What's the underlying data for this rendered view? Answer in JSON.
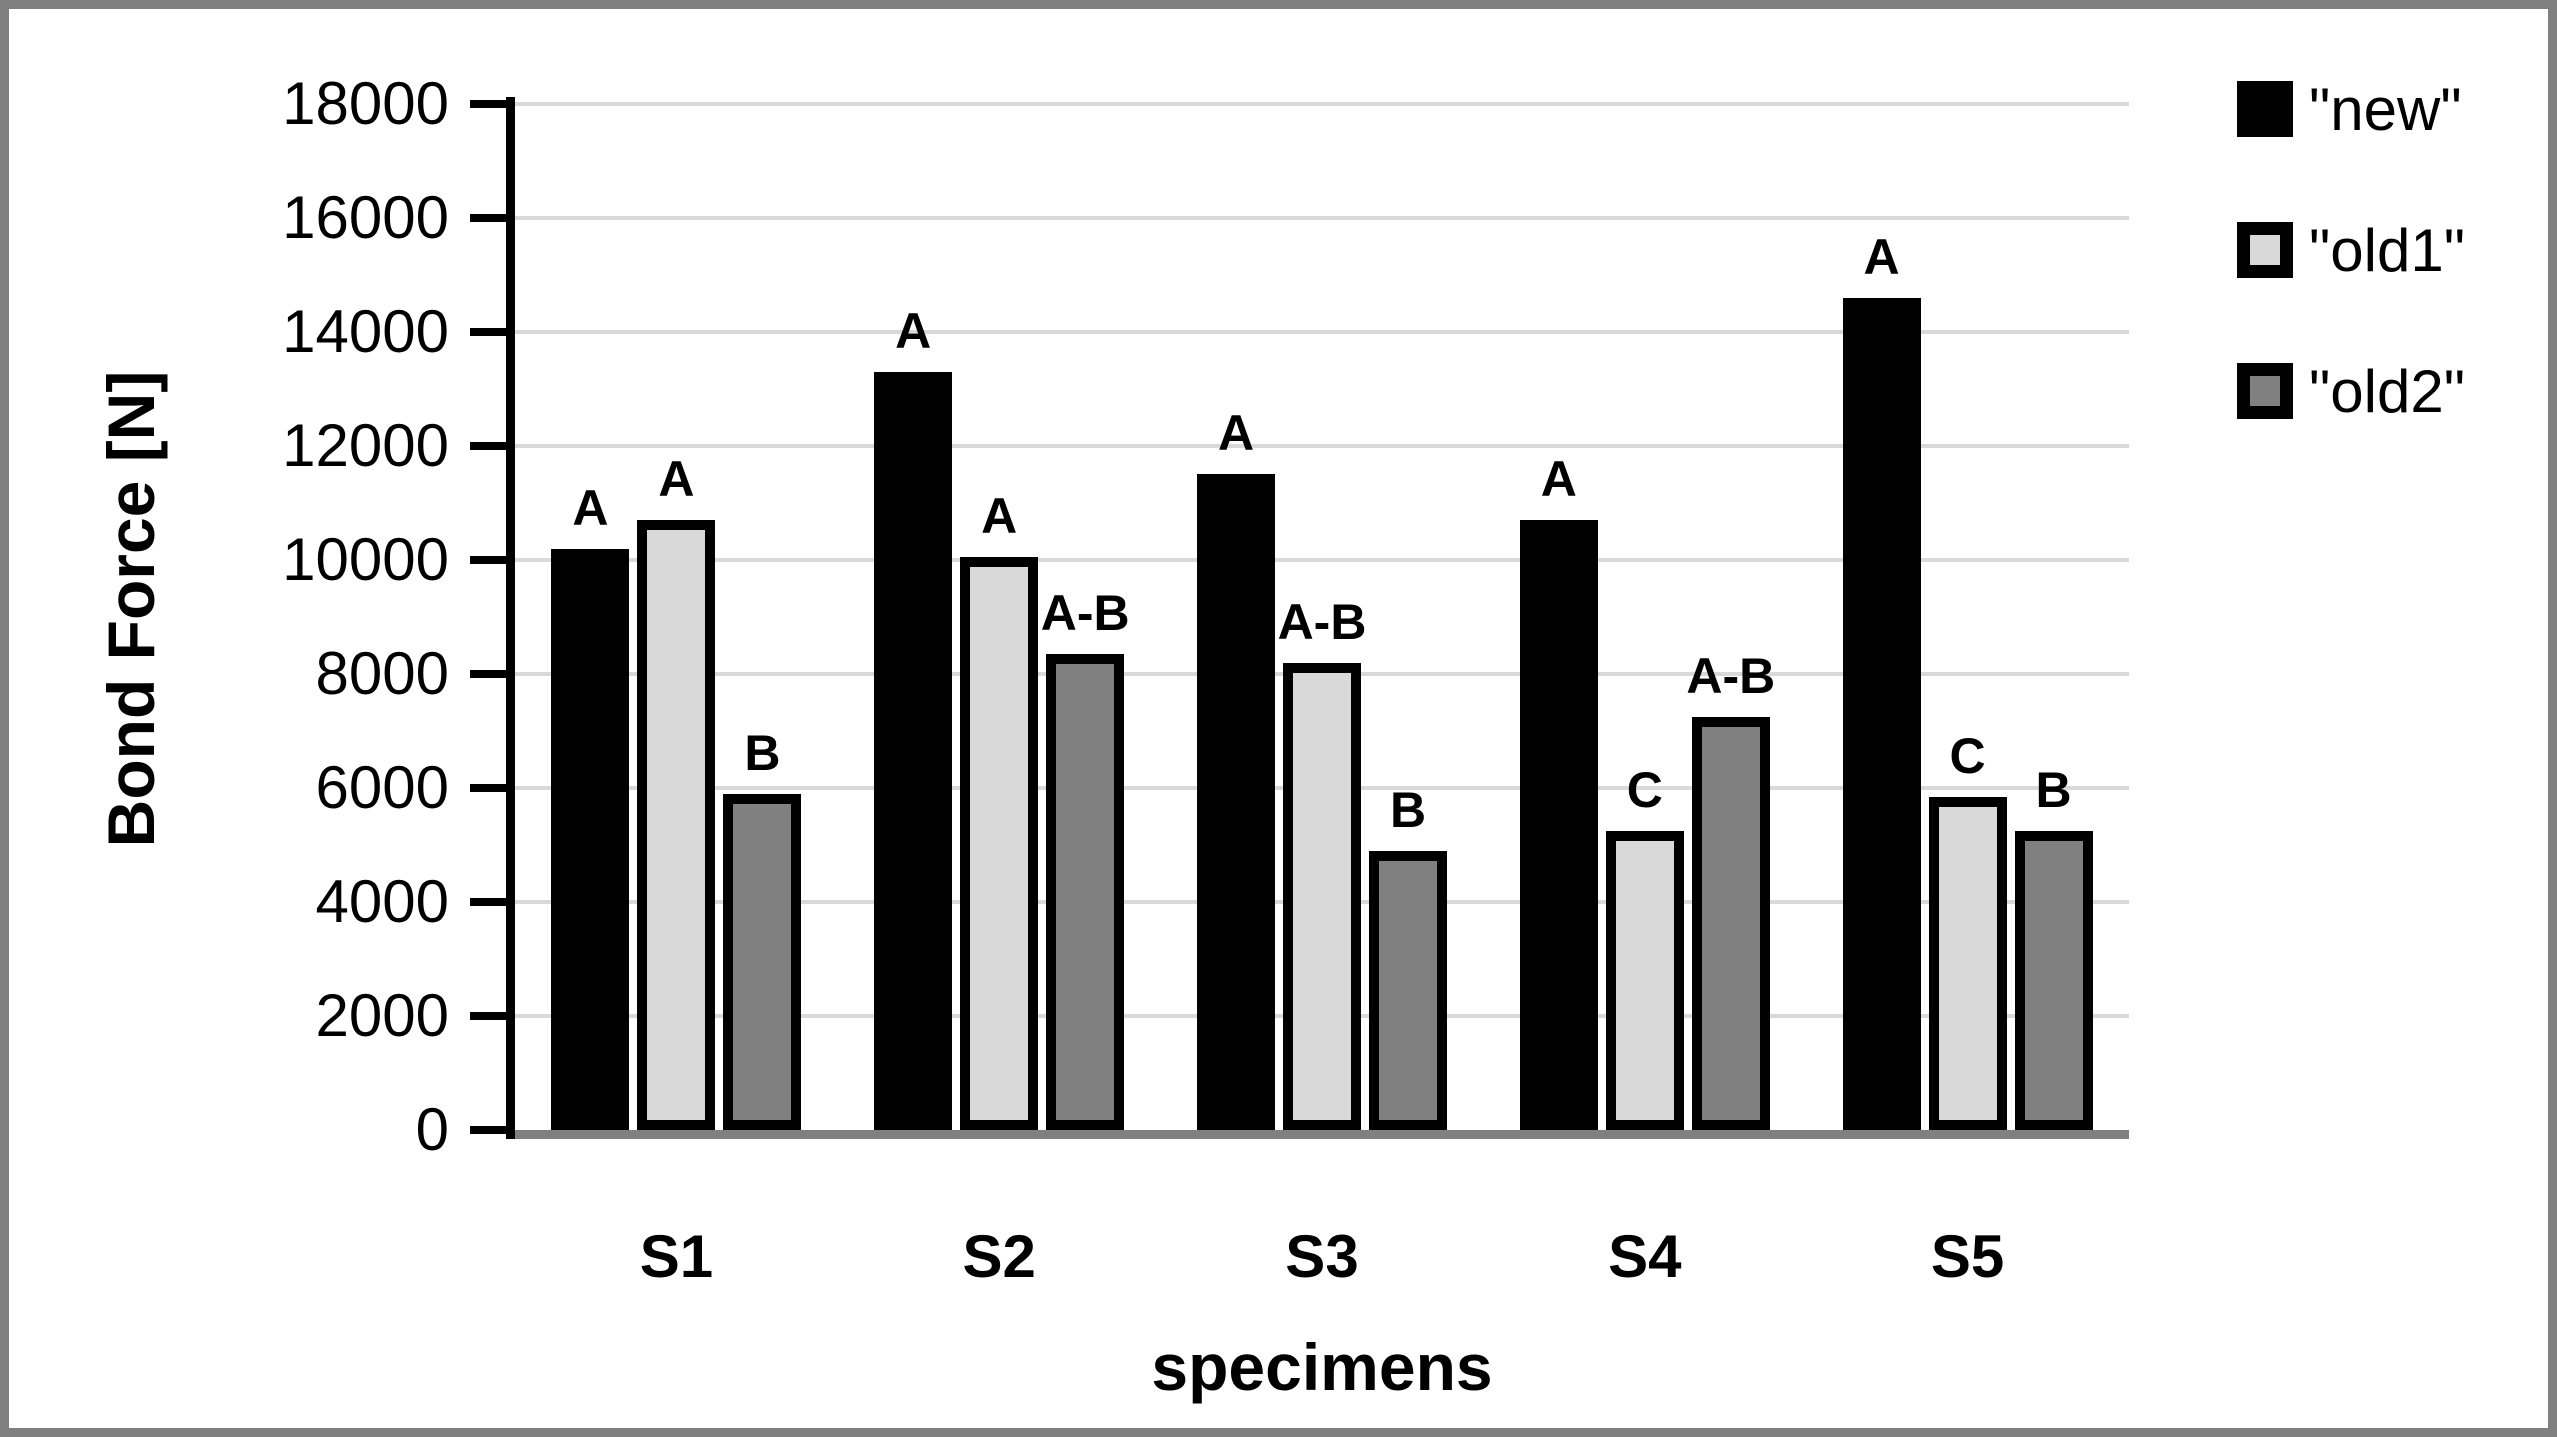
{
  "figure": {
    "background_color": "#ffffff",
    "border_color": "#808080"
  },
  "chart_data": {
    "type": "bar",
    "title": "",
    "xlabel": "specimens",
    "ylabel": "Bond Force [N]",
    "ylim": [
      0,
      18000
    ],
    "ytick_step": 2000,
    "ytick_labels": [
      "0",
      "2000",
      "4000",
      "6000",
      "8000",
      "10000",
      "12000",
      "14000",
      "16000",
      "18000"
    ],
    "categories": [
      "S1",
      "S2",
      "S3",
      "S4",
      "S5"
    ],
    "series": [
      {
        "name": "\"new\"",
        "color": "#000000",
        "outlined": false,
        "values": [
          10200,
          13300,
          11500,
          10700,
          14600
        ],
        "annotations": [
          "A",
          "A",
          "A",
          "A",
          "A"
        ]
      },
      {
        "name": "\"old1\"",
        "color": "#d9d9d9",
        "outlined": true,
        "values": [
          10700,
          10050,
          8200,
          5250,
          5850
        ],
        "annotations": [
          "A",
          "A",
          "A-B",
          "C",
          "C"
        ]
      },
      {
        "name": "\"old2\"",
        "color": "#808080",
        "outlined": true,
        "values": [
          5900,
          8350,
          4900,
          7250,
          5250
        ],
        "annotations": [
          "B",
          "A-B",
          "B",
          "A-B",
          "B"
        ]
      }
    ],
    "grid": true,
    "gridline_color": "#d9d9d9",
    "baseline_color": "#808080",
    "outline_color": "#000000",
    "legend_position": "top-right"
  }
}
